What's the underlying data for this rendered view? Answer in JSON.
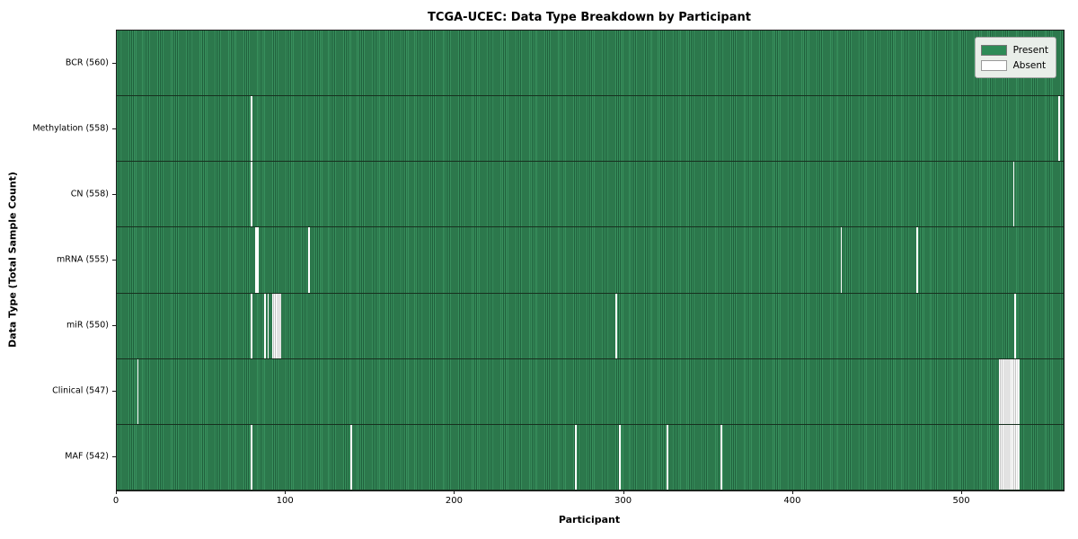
{
  "title": "TCGA-UCEC: Data Type Breakdown by Participant",
  "axes": {
    "xlabel": "Participant",
    "ylabel": "Data Type (Total Sample Count)"
  },
  "legend": {
    "present_label": "Present",
    "absent_label": "Absent"
  },
  "colors": {
    "present": "#2e8b57",
    "present_edge": "#20603c",
    "absent": "#ffffff",
    "absent_edge": "#c4c4c4",
    "row_divider": "#17301f"
  },
  "chart_data": {
    "type": "heatmap",
    "title": "TCGA-UCEC: Data Type Breakdown by Participant",
    "xlabel": "Participant",
    "ylabel": "Data Type (Total Sample Count)",
    "n_participants": 560,
    "xlim": [
      0,
      560
    ],
    "x_ticks": [
      0,
      100,
      200,
      300,
      400,
      500
    ],
    "grid": false,
    "legend_entries": [
      "Present",
      "Absent"
    ],
    "legend_position": "upper right",
    "rows": [
      {
        "label": "BCR (560)",
        "data_type": "BCR",
        "total_samples": 560,
        "absent_participants": []
      },
      {
        "label": "Methylation (558)",
        "data_type": "Methylation",
        "total_samples": 558,
        "absent_participants": [
          79,
          557
        ]
      },
      {
        "label": "CN (558)",
        "data_type": "CN",
        "total_samples": 558,
        "absent_participants": [
          79,
          530
        ]
      },
      {
        "label": "mRNA (555)",
        "data_type": "mRNA",
        "total_samples": 555,
        "absent_participants": [
          82,
          83,
          113,
          428,
          473
        ]
      },
      {
        "label": "miR (550)",
        "data_type": "miR",
        "total_samples": 550,
        "absent_participants": [
          79,
          87,
          89,
          92,
          93,
          94,
          95,
          96,
          295,
          531
        ]
      },
      {
        "label": "Clinical (547)",
        "data_type": "Clinical",
        "total_samples": 547,
        "absent_participants": [
          12,
          522,
          523,
          524,
          525,
          526,
          527,
          528,
          529,
          530,
          531,
          532,
          533
        ]
      },
      {
        "label": "MAF (542)",
        "data_type": "MAF",
        "total_samples": 542,
        "absent_participants": [
          79,
          138,
          271,
          297,
          325,
          357,
          522,
          523,
          524,
          525,
          526,
          527,
          528,
          529,
          530,
          531,
          532,
          533
        ]
      }
    ]
  }
}
